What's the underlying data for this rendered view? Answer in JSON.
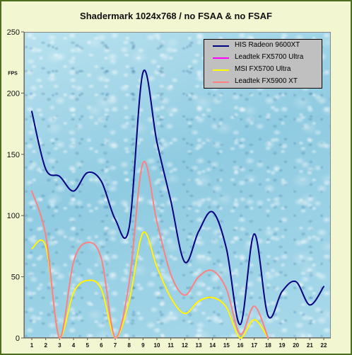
{
  "chart_data": {
    "type": "line",
    "title": "Shadermark 1024x768 / no FSAA & no FSAF",
    "xlabel": "",
    "ylabel": "FPS",
    "x": [
      1,
      2,
      3,
      4,
      5,
      6,
      7,
      8,
      9,
      10,
      11,
      12,
      13,
      14,
      15,
      16,
      17,
      18,
      19,
      20,
      21,
      22
    ],
    "ylim": [
      0,
      250
    ],
    "yticks": [
      0,
      50,
      100,
      150,
      200,
      250
    ],
    "grid": false,
    "legend_position": "top-right",
    "series": [
      {
        "name": "HIS Radeon 9600XT",
        "color": "#000080",
        "values": [
          185,
          138,
          132,
          120,
          135,
          128,
          97,
          90,
          217,
          160,
          112,
          62,
          87,
          103,
          73,
          11,
          85,
          18,
          38,
          46,
          27,
          42
        ]
      },
      {
        "name": "Leadtek FX5700 Ultra",
        "color": "#ff00ff",
        "values": [
          73,
          75,
          0,
          37,
          47,
          40,
          0,
          30,
          86,
          58,
          33,
          20,
          30,
          33,
          25,
          0,
          15,
          0,
          null,
          null,
          null,
          null
        ]
      },
      {
        "name": "MSI FX5700 Ultra",
        "color": "#ffff00",
        "values": [
          73,
          75,
          0,
          37,
          47,
          40,
          0,
          30,
          86,
          58,
          33,
          20,
          30,
          33,
          25,
          0,
          15,
          0,
          null,
          null,
          null,
          null
        ]
      },
      {
        "name": "Leadtek FX5900 XT",
        "color": "#ff8080",
        "values": [
          120,
          84,
          0,
          62,
          78,
          65,
          0,
          45,
          143,
          95,
          52,
          35,
          50,
          55,
          40,
          3,
          26,
          0,
          null,
          null,
          null,
          null
        ]
      }
    ]
  }
}
